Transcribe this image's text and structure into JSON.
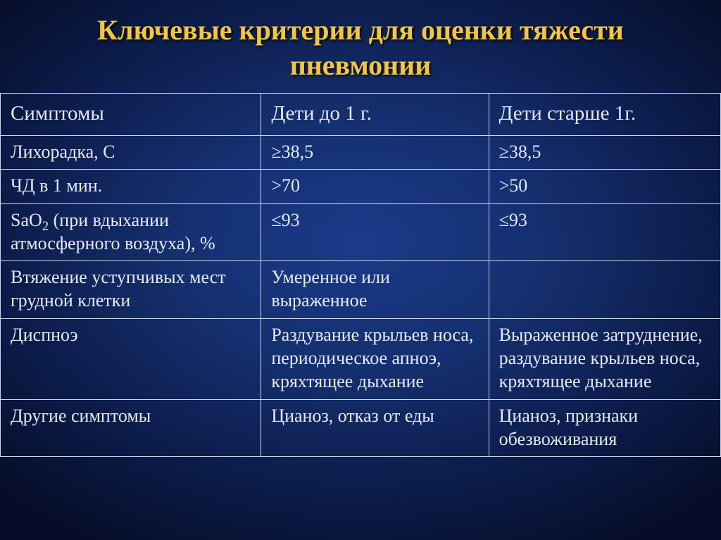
{
  "title": "Ключевые критерии для оценки тяжести пневмонии",
  "style": {
    "title_color": "#f5c542",
    "title_fontsize": 40,
    "text_color": "#e6e9f5",
    "header_fontsize": 29,
    "cell_fontsize": 26,
    "border_color": "#cfd6e6",
    "background_gradient": [
      "#1a3a8a",
      "#153070",
      "#0d1f50",
      "#050d28"
    ],
    "column_widths_pct": [
      36.2,
      31.6,
      32.2
    ]
  },
  "table": {
    "columns": [
      "Симптомы",
      "Дети до 1 г.",
      "Дети старше 1г."
    ],
    "rows": [
      [
        "Лихорадка, С",
        "≥38,5",
        "≥38,5"
      ],
      [
        "ЧД в 1 мин.",
        ">70",
        ">50"
      ],
      [
        "SaO₂ (при вдыхании атмосферного воздуха), %",
        "≤93",
        "≤93"
      ],
      [
        "Втяжение уступчивых мест грудной клетки",
        "Умеренное или выраженное",
        ""
      ],
      [
        "Диспноэ",
        "Раздувание крыльев носа, периодическое апноэ, кряхтящее дыхание",
        "Выраженное затруднение, раздувание крыльев носа, кряхтящее дыхание"
      ],
      [
        "Другие симптомы",
        "Цианоз, отказ от еды",
        "Цианоз, признаки обезвоживания"
      ]
    ]
  }
}
